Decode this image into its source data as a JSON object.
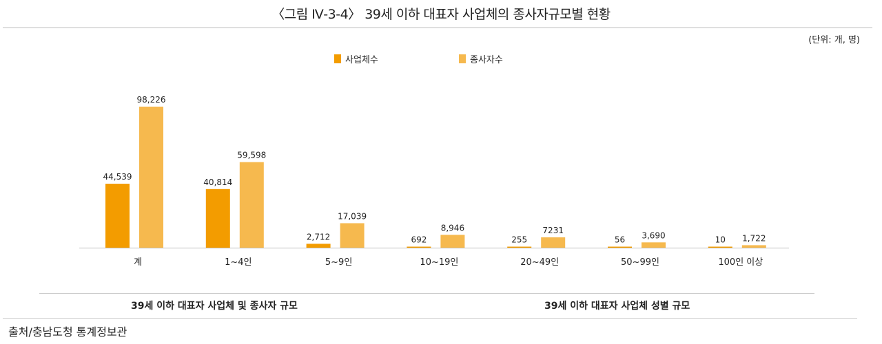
{
  "title": "〈그림 Ⅳ-3-4〉 39세 이하 대표자 사업체의 종사자규모별 현황",
  "unit": "(단위: 개, 명)",
  "subtitles": [
    "39세 이하 대표자 사업체 및 종사자 규모",
    "39세 이하 대표자 사업체 성별 규모"
  ],
  "source": "출처/충남도청 통계정보관",
  "colors": {
    "series1": "#f39c00",
    "series2": "#f6b94e"
  },
  "chart_data": {
    "type": "bar",
    "title": "39세 이하 대표자 사업체의 종사자규모별 현황",
    "categories": [
      "계",
      "1~4인",
      "5~9인",
      "10~19인",
      "20~49인",
      "50~99인",
      "100인 이상"
    ],
    "series": [
      {
        "name": "사업체수",
        "values": [
          44539,
          40814,
          2712,
          692,
          255,
          56,
          10
        ],
        "labels": [
          "44,539",
          "40,814",
          "2,712",
          "692",
          "255",
          "56",
          "10"
        ]
      },
      {
        "name": "종사자수",
        "values": [
          98226,
          59598,
          17039,
          8946,
          7231,
          3690,
          1722
        ],
        "labels": [
          "98,226",
          "59,598",
          "17,039",
          "8,946",
          "7231",
          "3,690",
          "1,722"
        ]
      }
    ],
    "ylim": [
      0,
      98226
    ],
    "legend": "top-center",
    "grid": false
  }
}
